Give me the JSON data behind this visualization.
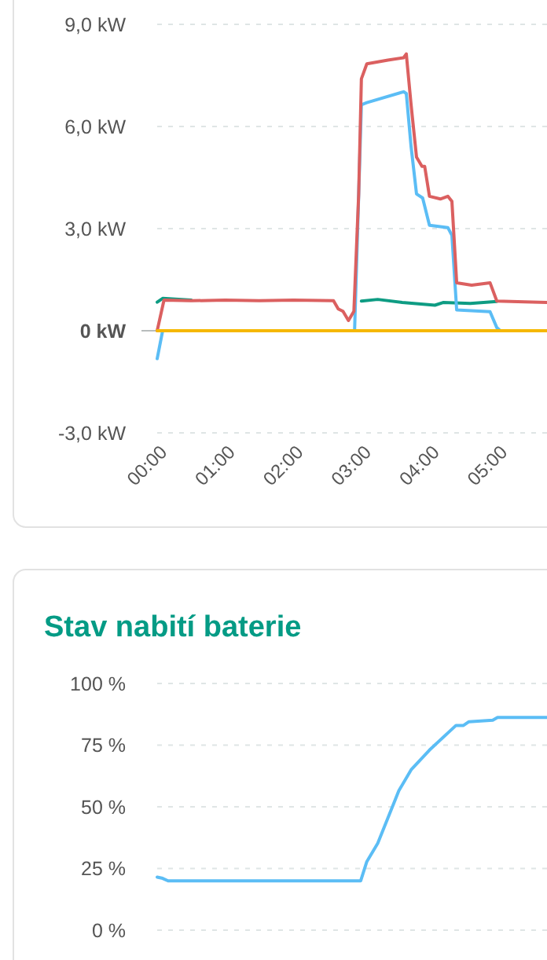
{
  "chart_data": [
    {
      "type": "line",
      "xlim": [
        0,
        5.75
      ],
      "ylim": [
        -3,
        9
      ],
      "xticks": [
        {
          "value": 0,
          "label": "00:00"
        },
        {
          "value": 1,
          "label": "01:00"
        },
        {
          "value": 2,
          "label": "02:00"
        },
        {
          "value": 3,
          "label": "03:00"
        },
        {
          "value": 4,
          "label": "04:00"
        },
        {
          "value": 5,
          "label": "05:00"
        }
      ],
      "yticks": [
        {
          "value": -3,
          "label": "-3,0 kW"
        },
        {
          "value": 0,
          "label": "0 kW"
        },
        {
          "value": 3,
          "label": "3,0 kW"
        },
        {
          "value": 6,
          "label": "6,0 kW"
        },
        {
          "value": 9,
          "label": "9,0 kW"
        }
      ],
      "grid": "y",
      "marker": "none",
      "line_style": "solid",
      "series": [
        {
          "color": "#0e9c83",
          "x": [
            0,
            0.08,
            0.5,
            2.9,
            3.0,
            3.24,
            3.6,
            4.08,
            4.2,
            4.6,
            4.99
          ],
          "values": [
            0.84,
            0.95,
            0.9,
            null,
            0.87,
            0.92,
            0.83,
            0.75,
            0.83,
            0.8,
            0.86
          ]
        },
        {
          "color": "#5bbdf5",
          "x": [
            0,
            0.08,
            2.9,
            3.0,
            3.08,
            3.62,
            3.66,
            3.73,
            3.81,
            3.9,
            4.0,
            4.27,
            4.33,
            4.4,
            4.89,
            4.99,
            5.04,
            5.75
          ],
          "values": [
            -0.82,
            0,
            0,
            6.64,
            6.7,
            7.02,
            6.97,
            5.41,
            4.02,
            3.9,
            3.1,
            3.03,
            2.8,
            0.61,
            0.56,
            0.09,
            0,
            0
          ]
        },
        {
          "color": "#db6060",
          "x": [
            0,
            0.1,
            0.5,
            1,
            1.5,
            2,
            2.59,
            2.66,
            2.73,
            2.81,
            2.89,
            2.96,
            3.0,
            3.08,
            3.39,
            3.62,
            3.66,
            3.73,
            3.81,
            3.89,
            3.93,
            4.0,
            4.16,
            4.27,
            4.33,
            4.4,
            4.62,
            4.89,
            4.99,
            5.4,
            5.75
          ],
          "values": [
            0,
            0.9,
            0.88,
            0.9,
            0.88,
            0.9,
            0.88,
            0.64,
            0.57,
            0.3,
            0.57,
            4,
            7.4,
            7.84,
            7.95,
            8.02,
            8.13,
            6.64,
            5.1,
            4.83,
            4.83,
            3.95,
            3.87,
            3.95,
            3.8,
            1.41,
            1.34,
            1.41,
            0.87,
            0.85,
            0.83
          ]
        },
        {
          "color": "#f5b800",
          "x": [
            0,
            5.75
          ],
          "values": [
            0,
            0
          ]
        }
      ]
    },
    {
      "type": "line",
      "title": "Stav nabití baterie",
      "xlim": [
        0,
        5.75
      ],
      "ylim": [
        0,
        100
      ],
      "yticks": [
        {
          "value": 0,
          "label": "0 %"
        },
        {
          "value": 25,
          "label": "25 %"
        },
        {
          "value": 50,
          "label": "50 %"
        },
        {
          "value": 75,
          "label": "75 %"
        },
        {
          "value": 100,
          "label": "100 %"
        }
      ],
      "tick_labels": "y",
      "grid": "y",
      "marker": "none",
      "line_style": "solid",
      "series": [
        {
          "color": "#5bbdf5",
          "x": [
            0,
            0.08,
            0.16,
            2.99,
            3.08,
            3.24,
            3.55,
            3.73,
            4.0,
            4.39,
            4.5,
            4.58,
            4.93,
            5.0,
            5.75
          ],
          "values": [
            21.5,
            21,
            20,
            20,
            27.8,
            35.2,
            56.5,
            65,
            73,
            83,
            83,
            84.5,
            85.1,
            86.2,
            86.2
          ]
        }
      ]
    }
  ]
}
